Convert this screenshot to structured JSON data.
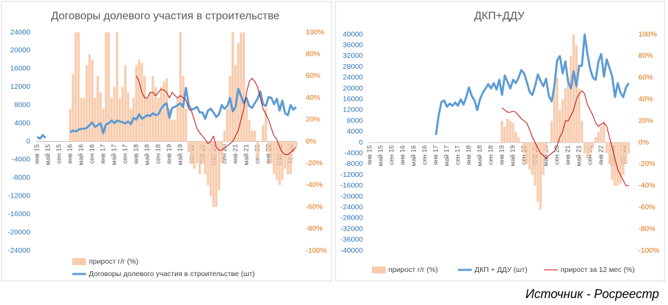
{
  "chart_data": [
    {
      "type": "combo",
      "title": "Договоры долевого участия в строительстве",
      "grid": false,
      "categories": [
        "янв 15",
        null,
        null,
        null,
        "май 15",
        null,
        null,
        null,
        "сен 15",
        null,
        null,
        null,
        "янв 16",
        null,
        null,
        null,
        "май 16",
        null,
        null,
        null,
        "сен 16",
        null,
        null,
        null,
        "янв 17",
        null,
        null,
        null,
        "май 17",
        null,
        null,
        null,
        "сен 17",
        null,
        null,
        null,
        "янв 18",
        null,
        null,
        null,
        "май 18",
        null,
        null,
        null,
        "сен 18",
        null,
        null,
        null,
        "янв 19",
        null,
        null,
        null,
        "май 19",
        null,
        null,
        null,
        "сен 19",
        null,
        null,
        null,
        "янв 20",
        null,
        null,
        null,
        "май 20",
        null,
        null,
        null,
        "сен 20",
        null,
        null,
        null,
        "янв 21",
        null,
        null,
        null,
        "май 21",
        null,
        null,
        null,
        "сен 21",
        null,
        null,
        null,
        "янв 22",
        null,
        null,
        null,
        "май 22",
        null,
        null,
        null,
        "сен 22",
        null,
        null
      ],
      "ylim": [
        -24000,
        24000
      ],
      "yticks": [
        -24000,
        -20000,
        -16000,
        -12000,
        -8000,
        -4000,
        0,
        4000,
        8000,
        12000,
        16000,
        20000,
        24000
      ],
      "y2lim": [
        -100,
        100
      ],
      "y2ticks": [
        {
          "value": -100,
          "label": "-100%"
        },
        {
          "value": -80,
          "label": "-80%"
        },
        {
          "value": -60,
          "label": "-60%"
        },
        {
          "value": -40,
          "label": "-40%"
        },
        {
          "value": -20,
          "label": "-20%"
        },
        {
          "value": 0,
          "label": "0%"
        },
        {
          "value": 20,
          "label": "20%"
        },
        {
          "value": 40,
          "label": "40%"
        },
        {
          "value": 60,
          "label": "60%"
        },
        {
          "value": 80,
          "label": "80%"
        },
        {
          "value": 100,
          "label": "100%"
        }
      ],
      "series": [
        {
          "name": "прирост г/г (%)",
          "kind": "bar",
          "axis": "y2",
          "color": "#f8cbad",
          "values": [
            null,
            null,
            null,
            null,
            null,
            null,
            null,
            null,
            null,
            null,
            null,
            null,
            30,
            62,
            100,
            100,
            40,
            40,
            70,
            80,
            75,
            40,
            60,
            45,
            30,
            100,
            100,
            40,
            50,
            100,
            40,
            50,
            70,
            45,
            30,
            40,
            70,
            75,
            72,
            60,
            40,
            45,
            60,
            50,
            40,
            50,
            55,
            58,
            30,
            20,
            20,
            40,
            100,
            60,
            30,
            -10,
            -20,
            -25,
            -20,
            -30,
            -20,
            -30,
            -40,
            -50,
            -60,
            -60,
            -45,
            -20,
            10,
            30,
            60,
            100,
            70,
            90,
            100,
            100,
            40,
            20,
            10,
            10,
            -15,
            0,
            15,
            30,
            -10,
            -20,
            -30,
            -35,
            -40,
            -35,
            -25,
            -30,
            -30,
            -10,
            -5
          ]
        },
        {
          "name": "Договоры долевого участия в строительстве (шт)",
          "kind": "line",
          "color": "#5b9bd5",
          "width": 3,
          "values": [
            1000,
            600,
            1400,
            800,
            null,
            null,
            null,
            null,
            null,
            null,
            null,
            null,
            2000,
            2400,
            2200,
            2600,
            2800,
            2800,
            3000,
            3600,
            4200,
            3200,
            3600,
            4000,
            1800,
            3800,
            4000,
            4600,
            4000,
            4600,
            4400,
            4200,
            4000,
            4400,
            3800,
            5200,
            4800,
            6000,
            5000,
            5400,
            5800,
            5600,
            6200,
            5800,
            6000,
            7200,
            8000,
            8400,
            5200,
            7400,
            7600,
            8000,
            8400,
            7600,
            11800,
            8000,
            7000,
            7200,
            7600,
            6400,
            6400,
            5000,
            6800,
            7200,
            6400,
            5400,
            6000,
            8000,
            7200,
            7800,
            9600,
            6600,
            7600,
            11600,
            10000,
            8400,
            9600,
            7800,
            7400,
            8400,
            9400,
            11000,
            8200,
            7800,
            9800,
            9600,
            8200,
            9400,
            6800,
            9000,
            6200,
            5800,
            8000,
            7000,
            7600
          ]
        },
        {
          "kind": "line",
          "axis": "y2",
          "color": "#c00000",
          "width": 1,
          "values": [
            null,
            null,
            null,
            null,
            null,
            null,
            null,
            null,
            null,
            null,
            null,
            null,
            null,
            null,
            null,
            null,
            null,
            null,
            null,
            null,
            null,
            null,
            null,
            null,
            null,
            null,
            null,
            null,
            null,
            null,
            null,
            null,
            null,
            null,
            null,
            null,
            60,
            55,
            45,
            40,
            40,
            45,
            45,
            42,
            45,
            48,
            47,
            45,
            40,
            45,
            42,
            40,
            42,
            40,
            38,
            30,
            28,
            20,
            12,
            8,
            5,
            2,
            -2,
            0,
            5,
            -5,
            -8,
            -8,
            -6,
            -4,
            -2,
            0,
            5,
            10,
            20,
            30,
            45,
            55,
            58,
            55,
            50,
            40,
            30,
            25,
            20,
            12,
            5,
            2,
            -5,
            -10,
            -12,
            -12,
            -10,
            -8,
            -5
          ]
        }
      ]
    },
    {
      "type": "combo",
      "title": "ДКП+ДДУ",
      "grid": false,
      "categories": [
        "янв 15",
        null,
        null,
        null,
        "май 15",
        null,
        null,
        null,
        "сен 15",
        null,
        null,
        null,
        "янв 16",
        null,
        null,
        null,
        "май 16",
        null,
        null,
        null,
        "сен 16",
        null,
        null,
        null,
        "янв 17",
        null,
        null,
        null,
        "май 17",
        null,
        null,
        null,
        "сен 17",
        null,
        null,
        null,
        "янв 18",
        null,
        null,
        null,
        "май 18",
        null,
        null,
        null,
        "сен 18",
        null,
        null,
        null,
        "янв 19",
        null,
        null,
        null,
        "май 19",
        null,
        null,
        null,
        "сен 19",
        null,
        null,
        null,
        "янв 20",
        null,
        null,
        null,
        "май 20",
        null,
        null,
        null,
        "сен 20",
        null,
        null,
        null,
        "янв 21",
        null,
        null,
        null,
        "май 21",
        null,
        null,
        null,
        "сен 21",
        null,
        null,
        null,
        "янв 22",
        null,
        null,
        null,
        "май 22",
        null,
        null,
        null,
        "сен 22",
        null,
        null
      ],
      "ylim": [
        -40000,
        40000
      ],
      "yticks": [
        -40000,
        -36000,
        -32000,
        -28000,
        -24000,
        -20000,
        -16000,
        -12000,
        -8000,
        -4000,
        0,
        4000,
        8000,
        12000,
        16000,
        20000,
        24000,
        28000,
        32000,
        36000,
        40000
      ],
      "y2lim": [
        -100,
        100
      ],
      "y2ticks": [
        {
          "value": -100,
          "label": "-100%"
        },
        {
          "value": -80,
          "label": "-80%"
        },
        {
          "value": -60,
          "label": "-60%"
        },
        {
          "value": -40,
          "label": "-40%"
        },
        {
          "value": -20,
          "label": "-20%"
        },
        {
          "value": 0,
          "label": "0%"
        },
        {
          "value": 20,
          "label": "20%"
        },
        {
          "value": 40,
          "label": "40%"
        },
        {
          "value": 60,
          "label": "60%"
        },
        {
          "value": 80,
          "label": "80%"
        },
        {
          "value": 100,
          "label": "100%"
        }
      ],
      "series": [
        {
          "name": "прирост г/г (%)",
          "kind": "bar",
          "axis": "y2",
          "color": "#f8cbad",
          "values": [
            null,
            null,
            null,
            null,
            null,
            null,
            null,
            null,
            null,
            null,
            null,
            null,
            null,
            null,
            null,
            null,
            null,
            null,
            null,
            null,
            null,
            null,
            null,
            null,
            null,
            null,
            null,
            null,
            null,
            null,
            null,
            null,
            null,
            null,
            null,
            null,
            null,
            null,
            null,
            null,
            null,
            null,
            null,
            null,
            null,
            null,
            null,
            null,
            20,
            15,
            22,
            20,
            18,
            10,
            5,
            0,
            -10,
            -20,
            -25,
            -30,
            -40,
            -55,
            -62,
            -30,
            -10,
            0,
            20,
            50,
            60,
            30,
            40,
            50,
            60,
            80,
            100,
            90,
            50,
            20,
            -10,
            -15,
            -10,
            -5,
            5,
            10,
            15,
            20,
            -10,
            -20,
            -35,
            -40,
            -40,
            -38,
            -30,
            -20,
            -10
          ]
        },
        {
          "name": "ДКП + ДДУ (шт)",
          "kind": "line",
          "color": "#5b9bd5",
          "width": 3,
          "values": [
            null,
            null,
            null,
            null,
            null,
            null,
            null,
            null,
            null,
            null,
            null,
            null,
            null,
            null,
            null,
            null,
            null,
            null,
            null,
            null,
            null,
            null,
            null,
            null,
            2800,
            10000,
            15000,
            15600,
            13200,
            14400,
            13600,
            14800,
            13600,
            16000,
            14000,
            16800,
            20400,
            17200,
            15600,
            12000,
            16000,
            18400,
            20000,
            21600,
            20000,
            22000,
            19600,
            23200,
            17600,
            24800,
            22400,
            20000,
            23200,
            22000,
            24000,
            26800,
            25600,
            22400,
            18800,
            17600,
            20800,
            25200,
            22800,
            20800,
            23600,
            17200,
            15200,
            20800,
            30400,
            32000,
            25600,
            30000,
            22400,
            20000,
            26400,
            20800,
            28400,
            28400,
            40000,
            32800,
            27200,
            24000,
            23200,
            30000,
            32800,
            24400,
            30800,
            27600,
            24400,
            16800,
            22000,
            18400,
            16800,
            20400,
            22000
          ]
        },
        {
          "name": "прирост за 12 мес (%)",
          "kind": "line",
          "axis": "y2",
          "color": "#c00000",
          "width": 1,
          "values": [
            null,
            null,
            null,
            null,
            null,
            null,
            null,
            null,
            null,
            null,
            null,
            null,
            null,
            null,
            null,
            null,
            null,
            null,
            null,
            null,
            null,
            null,
            null,
            null,
            null,
            null,
            null,
            null,
            null,
            null,
            null,
            null,
            null,
            null,
            null,
            null,
            null,
            null,
            null,
            null,
            null,
            null,
            null,
            null,
            null,
            null,
            null,
            null,
            32,
            30,
            28,
            28,
            29,
            28,
            25,
            22,
            20,
            18,
            12,
            5,
            0,
            -5,
            -10,
            -12,
            -15,
            -12,
            -10,
            -8,
            -3,
            5,
            10,
            20,
            20,
            25,
            30,
            40,
            45,
            48,
            45,
            35,
            30,
            25,
            18,
            15,
            17,
            18,
            15,
            5,
            -5,
            -15,
            -25,
            -30,
            -35,
            -40,
            -40
          ]
        }
      ]
    }
  ],
  "source": "Источник - Росреестр"
}
